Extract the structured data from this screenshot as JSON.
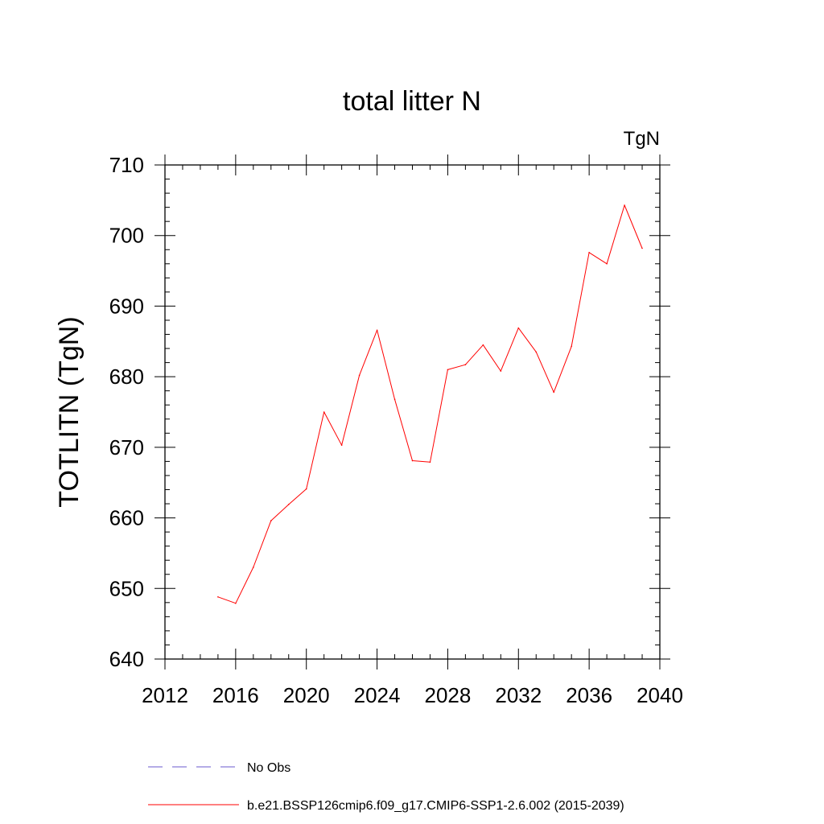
{
  "chart_data": {
    "type": "line",
    "title": "total litter N",
    "units_label": "TgN",
    "ylabel": "TOTLITN  (TgN)",
    "xlabel": "",
    "xlim": [
      2012,
      2040
    ],
    "ylim": [
      640,
      710
    ],
    "x_ticks": [
      2012,
      2016,
      2020,
      2024,
      2028,
      2032,
      2036,
      2040
    ],
    "y_ticks": [
      640,
      650,
      660,
      670,
      680,
      690,
      700,
      710
    ],
    "grid": false,
    "legend_position": "bottom",
    "series": [
      {
        "name": "b.e21.BSSP126cmip6.f09_g17.CMIP6-SSP1-2.6.002 (2015-2039)",
        "color": "#ff0000",
        "style": "solid",
        "x": [
          2015,
          2016,
          2017,
          2018,
          2019,
          2020,
          2021,
          2022,
          2023,
          2024,
          2025,
          2026,
          2027,
          2028,
          2029,
          2030,
          2031,
          2032,
          2033,
          2034,
          2035,
          2036,
          2037,
          2038,
          2039
        ],
        "y": [
          648.8,
          647.9,
          653.0,
          659.6,
          661.9,
          664.1,
          675.0,
          670.3,
          680.2,
          686.6,
          676.8,
          668.1,
          667.9,
          681.0,
          681.7,
          684.5,
          680.8,
          686.9,
          683.5,
          677.8,
          684.3,
          697.6,
          696.0,
          704.3,
          698.2
        ]
      }
    ],
    "legend": [
      {
        "label": "No Obs",
        "color": "#6a5acd",
        "style": "dashed"
      },
      {
        "label": "b.e21.BSSP126cmip6.f09_g17.CMIP6-SSP1-2.6.002 (2015-2039)",
        "color": "#ff0000",
        "style": "solid"
      }
    ]
  }
}
